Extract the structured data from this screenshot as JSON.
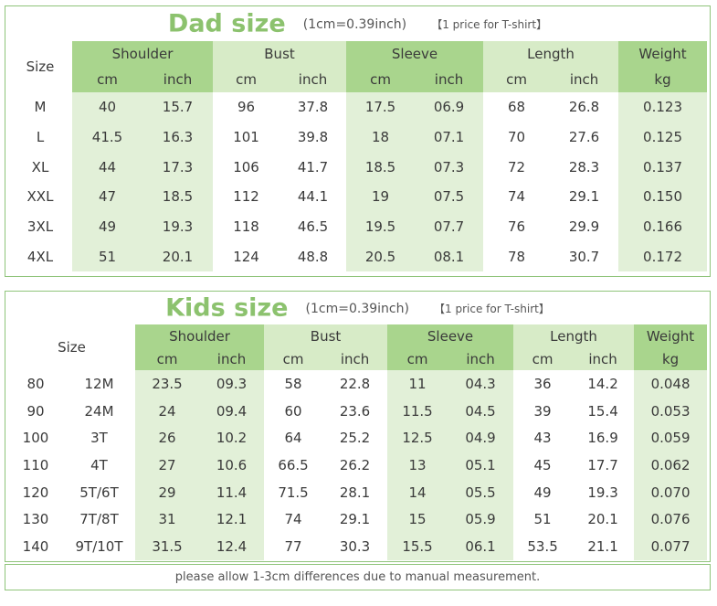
{
  "dad": {
    "title": "Dad size",
    "unit_note": "(1cm=0.39inch)",
    "price_note": "【1 price for T-shirt】",
    "headers": {
      "size": "Size",
      "shoulder": "Shoulder",
      "bust": "Bust",
      "sleeve": "Sleeve",
      "length": "Length",
      "weight": "Weight",
      "cm": "cm",
      "inch": "inch",
      "kg": "kg"
    },
    "rows": [
      [
        "M",
        "40",
        "15.7",
        "96",
        "37.8",
        "17.5",
        "06.9",
        "68",
        "26.8",
        "0.123"
      ],
      [
        "L",
        "41.5",
        "16.3",
        "101",
        "39.8",
        "18",
        "07.1",
        "70",
        "27.6",
        "0.125"
      ],
      [
        "XL",
        "44",
        "17.3",
        "106",
        "41.7",
        "18.5",
        "07.3",
        "72",
        "28.3",
        "0.137"
      ],
      [
        "XXL",
        "47",
        "18.5",
        "112",
        "44.1",
        "19",
        "07.5",
        "74",
        "29.1",
        "0.150"
      ],
      [
        "3XL",
        "49",
        "19.3",
        "118",
        "46.5",
        "19.5",
        "07.7",
        "76",
        "29.9",
        "0.166"
      ],
      [
        "4XL",
        "51",
        "20.1",
        "124",
        "48.8",
        "20.5",
        "08.1",
        "78",
        "30.7",
        "0.172"
      ]
    ]
  },
  "kids": {
    "title": "Kids size",
    "unit_note": "(1cm=0.39inch)",
    "price_note": "【1 price for T-shirt】",
    "headers": {
      "size": "Size",
      "shoulder": "Shoulder",
      "bust": "Bust",
      "sleeve": "Sleeve",
      "length": "Length",
      "weight": "Weight",
      "cm": "cm",
      "inch": "inch",
      "kg": "kg"
    },
    "rows": [
      [
        "80",
        "12M",
        "23.5",
        "09.3",
        "58",
        "22.8",
        "11",
        "04.3",
        "36",
        "14.2",
        "0.048"
      ],
      [
        "90",
        "24M",
        "24",
        "09.4",
        "60",
        "23.6",
        "11.5",
        "04.5",
        "39",
        "15.4",
        "0.053"
      ],
      [
        "100",
        "3T",
        "26",
        "10.2",
        "64",
        "25.2",
        "12.5",
        "04.9",
        "43",
        "16.9",
        "0.059"
      ],
      [
        "110",
        "4T",
        "27",
        "10.6",
        "66.5",
        "26.2",
        "13",
        "05.1",
        "45",
        "17.7",
        "0.062"
      ],
      [
        "120",
        "5T/6T",
        "29",
        "11.4",
        "71.5",
        "28.1",
        "14",
        "05.5",
        "49",
        "19.3",
        "0.070"
      ],
      [
        "130",
        "7T/8T",
        "31",
        "12.1",
        "74",
        "29.1",
        "15",
        "05.9",
        "51",
        "20.1",
        "0.076"
      ],
      [
        "140",
        "9T/10T",
        "31.5",
        "12.4",
        "77",
        "30.3",
        "15.5",
        "06.1",
        "53.5",
        "21.1",
        "0.077"
      ]
    ]
  },
  "footer_note": "please allow 1-3cm differences due to manual measurement."
}
